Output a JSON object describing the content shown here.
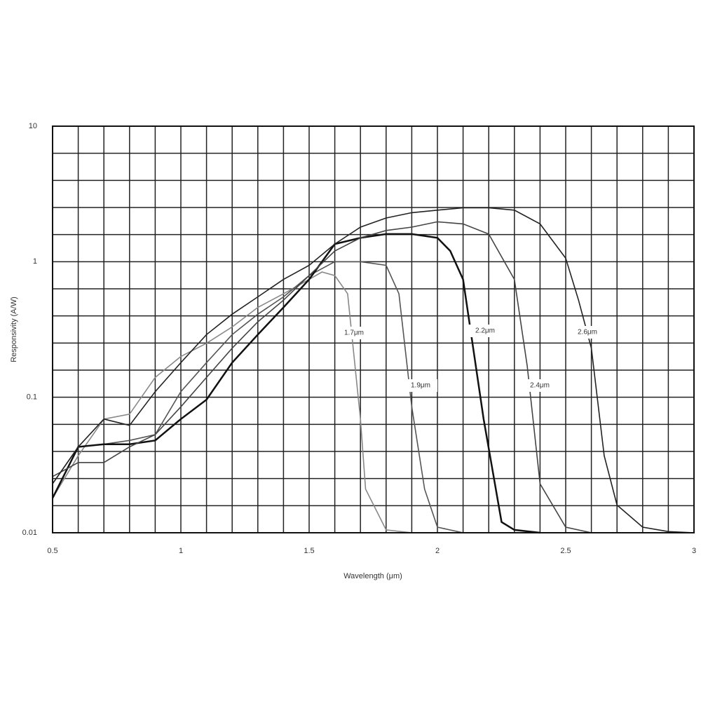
{
  "chart_data": {
    "type": "line",
    "x_label": "Wavelength (μm)",
    "y_label": "Responsivity (A/W)",
    "xlim": [
      0.5,
      3
    ],
    "xticks": [
      0.5,
      1,
      1.5,
      2,
      2.5,
      3
    ],
    "ylim": [
      0.01,
      10
    ],
    "yticks": [
      0.01,
      0.1,
      1,
      10
    ],
    "log_y": true,
    "grid": true,
    "series": [
      {
        "name": "1.7μm",
        "color": "#888888",
        "x": [
          0.5,
          0.6,
          0.7,
          0.8,
          0.9,
          1.0,
          1.1,
          1.2,
          1.3,
          1.4,
          1.5,
          1.55,
          1.6,
          1.65,
          1.7,
          1.72,
          1.8,
          1.9
        ],
        "values": [
          0.018,
          0.037,
          0.069,
          0.075,
          0.14,
          0.2,
          0.25,
          0.33,
          0.46,
          0.58,
          0.74,
          0.84,
          0.79,
          0.58,
          0.069,
          0.021,
          0.0105,
          0.01
        ]
      },
      {
        "name": "1.9μm",
        "color": "#555555",
        "x": [
          0.5,
          0.6,
          0.7,
          0.8,
          0.9,
          1.0,
          1.1,
          1.2,
          1.3,
          1.4,
          1.5,
          1.6,
          1.7,
          1.8,
          1.85,
          1.9,
          1.95,
          2.0,
          2.1
        ],
        "values": [
          0.023,
          0.043,
          0.045,
          0.048,
          0.053,
          0.11,
          0.18,
          0.29,
          0.41,
          0.55,
          0.79,
          1.0,
          1.0,
          0.94,
          0.58,
          0.085,
          0.021,
          0.011,
          0.01
        ]
      },
      {
        "name": "2.2μm",
        "color": "#111111",
        "x": [
          0.5,
          0.6,
          0.7,
          0.8,
          0.9,
          1.0,
          1.1,
          1.2,
          1.3,
          1.4,
          1.5,
          1.6,
          1.7,
          1.8,
          1.9,
          2.0,
          2.05,
          2.1,
          2.18,
          2.25,
          2.3,
          2.4
        ],
        "values": [
          0.018,
          0.043,
          0.045,
          0.045,
          0.048,
          0.069,
          0.096,
          0.18,
          0.29,
          0.46,
          0.74,
          1.35,
          1.5,
          1.6,
          1.6,
          1.5,
          1.2,
          0.74,
          0.069,
          0.012,
          0.0105,
          0.01
        ]
      },
      {
        "name": "2.4μm",
        "color": "#444444",
        "x": [
          0.5,
          0.6,
          0.7,
          0.8,
          0.9,
          1.0,
          1.1,
          1.2,
          1.3,
          1.4,
          1.5,
          1.6,
          1.7,
          1.8,
          1.9,
          2.0,
          2.1,
          2.2,
          2.3,
          2.35,
          2.4,
          2.5,
          2.6
        ],
        "values": [
          0.026,
          0.033,
          0.033,
          0.043,
          0.053,
          0.085,
          0.14,
          0.23,
          0.36,
          0.52,
          0.79,
          1.2,
          1.5,
          1.7,
          1.8,
          1.97,
          1.9,
          1.6,
          0.74,
          0.17,
          0.023,
          0.011,
          0.01
        ]
      },
      {
        "name": "2.6μm",
        "color": "#222222",
        "x": [
          0.5,
          0.6,
          0.7,
          0.8,
          0.9,
          1.0,
          1.1,
          1.2,
          1.3,
          1.4,
          1.5,
          1.6,
          1.7,
          1.8,
          1.9,
          2.0,
          2.1,
          2.2,
          2.3,
          2.4,
          2.5,
          2.55,
          2.6,
          2.65,
          2.7,
          2.8,
          2.9,
          3.0
        ],
        "values": [
          0.023,
          0.043,
          0.069,
          0.062,
          0.11,
          0.18,
          0.29,
          0.41,
          0.55,
          0.74,
          0.94,
          1.35,
          1.8,
          2.1,
          2.3,
          2.4,
          2.5,
          2.5,
          2.4,
          1.9,
          1.06,
          0.52,
          0.23,
          0.037,
          0.016,
          0.011,
          0.0102,
          0.01
        ]
      }
    ]
  }
}
